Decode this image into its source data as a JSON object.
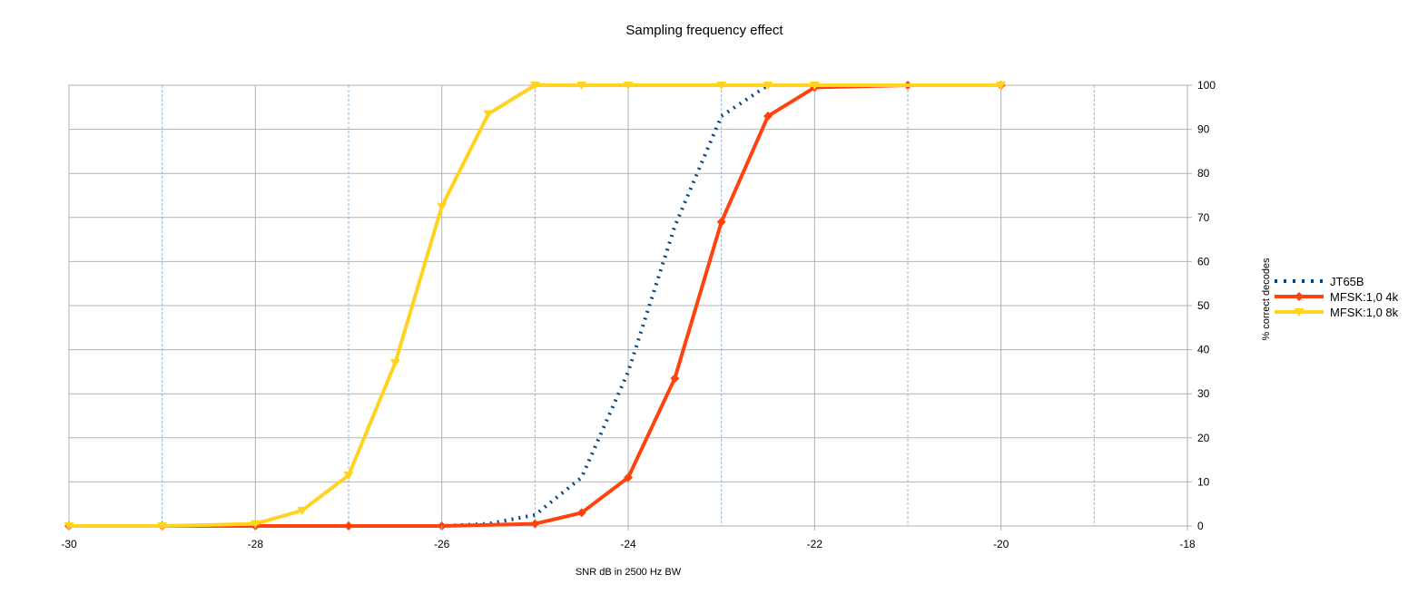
{
  "chart_data": {
    "type": "line",
    "title": "Sampling frequency effect",
    "xlabel": "SNR dB in 2500 Hz BW",
    "ylabel": "% correct decodes",
    "xlim": [
      -30,
      -18
    ],
    "ylim": [
      0,
      100
    ],
    "x_ticks": [
      -30,
      -28,
      -26,
      -24,
      -22,
      -20,
      -18
    ],
    "y_ticks": [
      0,
      10,
      20,
      30,
      40,
      50,
      60,
      70,
      80,
      90,
      100
    ],
    "grid": {
      "horizontal": true,
      "vertical": true
    },
    "y_axis_position": "right",
    "legend_position": "right",
    "series": [
      {
        "name": "JT65B",
        "color": "#004586",
        "style": "dotted",
        "marker": "none",
        "points": [
          [
            -30,
            0
          ],
          [
            -29,
            0
          ],
          [
            -28,
            0
          ],
          [
            -27,
            0
          ],
          [
            -26,
            0
          ],
          [
            -25.5,
            0.5
          ],
          [
            -25,
            2.5
          ],
          [
            -24.5,
            11
          ],
          [
            -24,
            35
          ],
          [
            -23.5,
            68
          ],
          [
            -23,
            93
          ],
          [
            -22.5,
            100
          ],
          [
            -22,
            100
          ],
          [
            -21,
            100
          ],
          [
            -20,
            100
          ]
        ]
      },
      {
        "name": "MFSK:1,0 4k",
        "color": "#ff420e",
        "style": "solid",
        "marker": "diamond",
        "points": [
          [
            -30,
            0
          ],
          [
            -29,
            0
          ],
          [
            -28,
            0
          ],
          [
            -27,
            0
          ],
          [
            -26,
            0
          ],
          [
            -25,
            0.5
          ],
          [
            -24.5,
            3
          ],
          [
            -24,
            11
          ],
          [
            -23.5,
            33.5
          ],
          [
            -23,
            69
          ],
          [
            -22.5,
            93
          ],
          [
            -22,
            99.5
          ],
          [
            -21,
            100
          ],
          [
            -20,
            100
          ]
        ]
      },
      {
        "name": "MFSK:1,0 8k",
        "color": "#ffd320",
        "style": "solid",
        "marker": "triangle-down",
        "points": [
          [
            -30,
            0
          ],
          [
            -29,
            0
          ],
          [
            -28,
            0.5
          ],
          [
            -27.5,
            3.5
          ],
          [
            -27,
            11.5
          ],
          [
            -26.5,
            37
          ],
          [
            -26,
            72.5
          ],
          [
            -25.5,
            93.5
          ],
          [
            -25,
            100
          ],
          [
            -24.5,
            100
          ],
          [
            -24,
            100
          ],
          [
            -23,
            100
          ],
          [
            -22.5,
            100
          ],
          [
            -22,
            100
          ],
          [
            -20,
            100
          ]
        ]
      }
    ]
  }
}
